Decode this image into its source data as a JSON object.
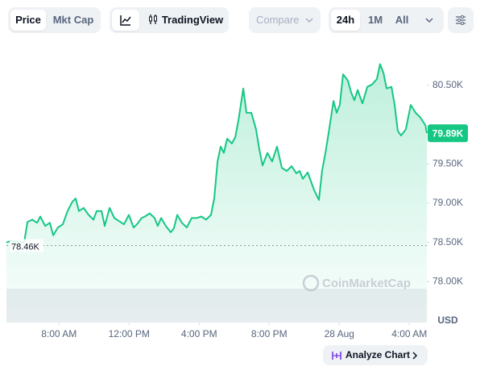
{
  "toolbar": {
    "price": "Price",
    "market_cap": "Mkt Cap",
    "tradingview": "TradingView",
    "compare": "Compare",
    "ranges": [
      "24h",
      "1M",
      "All"
    ],
    "analyze": "Analyze Chart"
  },
  "chart_data": {
    "type": "area",
    "watermark": "CoinMarketCap",
    "y_label": "USD",
    "color": "#16c784",
    "x": [
      5.0,
      5.28,
      6.01,
      6.2,
      6.47,
      6.75,
      6.93,
      7.21,
      7.48,
      7.67,
      7.94,
      8.22,
      8.49,
      8.77,
      8.95,
      9.14,
      9.41,
      9.69,
      9.97,
      10.15,
      10.43,
      10.61,
      10.89,
      11.16,
      11.44,
      11.71,
      11.99,
      12.26,
      12.45,
      12.72,
      12.91,
      13.18,
      13.46,
      13.64,
      13.83,
      14.1,
      14.38,
      14.56,
      14.75,
      15.02,
      15.3,
      15.57,
      15.85,
      16.13,
      16.4,
      16.68,
      16.86,
      17.05,
      17.23,
      17.41,
      17.6,
      17.87,
      18.06,
      18.24,
      18.52,
      18.7,
      18.98,
      19.25,
      19.44,
      19.62,
      19.9,
      20.17,
      20.45,
      20.72,
      21.0,
      21.28,
      21.55,
      21.74,
      21.92,
      22.2,
      22.38,
      22.56,
      22.84,
      23.02,
      23.21,
      23.39,
      23.67,
      23.85,
      24.03,
      24.22,
      24.49,
      24.68,
      24.86,
      25.05,
      25.32,
      25.6,
      25.87,
      26.15,
      26.33,
      26.52,
      26.7,
      26.98,
      27.16,
      27.34,
      27.53,
      27.8,
      28.08,
      28.36,
      28.63,
      28.92,
      29.0
    ],
    "values": [
      78500,
      78520,
      78500,
      78760,
      78790,
      78750,
      78830,
      78710,
      78750,
      78590,
      78690,
      78730,
      78900,
      79020,
      79060,
      78900,
      78940,
      78850,
      78790,
      78900,
      78900,
      78710,
      78940,
      78810,
      78770,
      78730,
      78850,
      78690,
      78730,
      78810,
      78830,
      78870,
      78810,
      78710,
      78810,
      78710,
      78630,
      78680,
      78850,
      78750,
      78690,
      78810,
      78810,
      78830,
      78790,
      78850,
      79060,
      79530,
      79720,
      79640,
      79820,
      79760,
      79840,
      80050,
      80460,
      80150,
      80150,
      79940,
      79680,
      79480,
      79640,
      79530,
      79720,
      79450,
      79410,
      79470,
      79380,
      79410,
      79310,
      79390,
      79280,
      79170,
      79040,
      79410,
      79640,
      79890,
      80300,
      80150,
      80250,
      80640,
      80560,
      80410,
      80310,
      80440,
      80270,
      80480,
      80510,
      80580,
      80770,
      80660,
      80460,
      80480,
      80250,
      79920,
      79860,
      79940,
      80250,
      80150,
      80090,
      79990,
      79890
    ],
    "xlim": [
      5,
      29
    ],
    "xticks": [
      {
        "value": 8,
        "label": "8:00 AM"
      },
      {
        "value": 12,
        "label": "12:00 PM"
      },
      {
        "value": 16,
        "label": "4:00 PM"
      },
      {
        "value": 20,
        "label": "8:00 PM"
      },
      {
        "value": 24,
        "label": "28 Aug"
      },
      {
        "value": 28,
        "label": "4:00 AM"
      }
    ],
    "ylim": [
      77480,
      80970
    ],
    "yticks": [
      {
        "value": 78000,
        "label": "78.00K"
      },
      {
        "value": 78500,
        "label": "78.50K"
      },
      {
        "value": 79000,
        "label": "79.00K"
      },
      {
        "value": 79500,
        "label": "79.50K"
      },
      {
        "value": 80500,
        "label": "80.50K"
      }
    ],
    "reference_line": {
      "value": 78460,
      "label": "78.46K"
    },
    "last_price": {
      "value": 79890,
      "label": "79.89K"
    }
  }
}
